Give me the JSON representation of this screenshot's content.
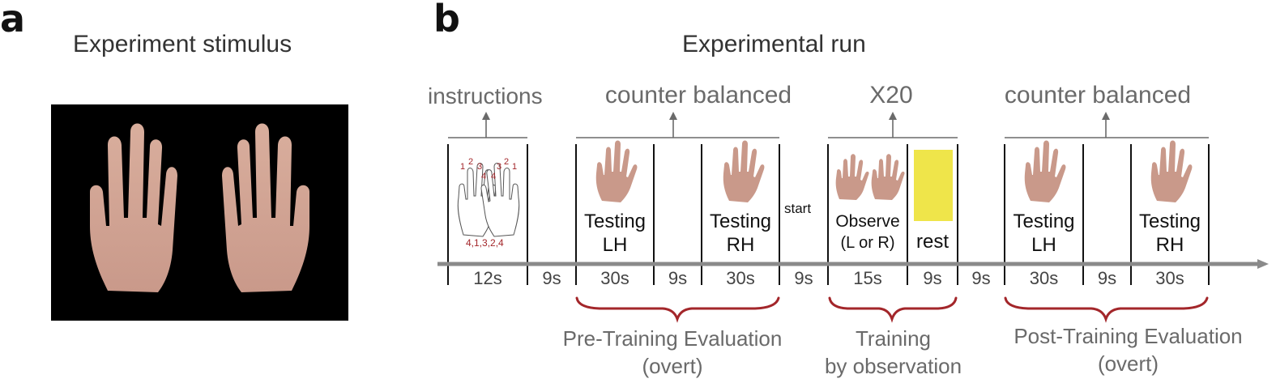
{
  "panel_a": {
    "letter": "a",
    "title": "Experiment stimulus"
  },
  "panel_b": {
    "letter": "b",
    "title": "Experimental run",
    "headers": {
      "instructions": "instructions",
      "counter_balanced_pre": "counter balanced",
      "repeat": "X20",
      "counter_balanced_post": "counter balanced"
    },
    "instructions_image": {
      "finger_numbers_left": [
        "1",
        "2",
        "3",
        "4"
      ],
      "finger_numbers_right": [
        "4",
        "3",
        "2",
        "1"
      ],
      "sequence": "4,1,3,2,4"
    },
    "cells": {
      "pre_left": [
        "Testing",
        "LH"
      ],
      "pre_right": [
        "Testing",
        "RH"
      ],
      "start": "start",
      "observe": [
        "Observe",
        "(L or R)"
      ],
      "rest": "rest",
      "post_left": [
        "Testing",
        "LH"
      ],
      "post_right": [
        "Testing",
        "RH"
      ]
    },
    "durations": [
      "12s",
      "9s",
      "30s",
      "9s",
      "30s",
      "9s",
      "15s",
      "9s",
      "9s",
      "30s",
      "9s",
      "30s"
    ],
    "phases": {
      "pre": [
        "Pre-Training Evaluation",
        "(overt)"
      ],
      "training": [
        "Training",
        "by observation"
      ],
      "post": [
        "Post-Training Evaluation",
        "(overt)"
      ]
    },
    "colors": {
      "rest_block": "#efe54a",
      "brace": "#a3262a",
      "timeline": "#8a8a8a",
      "stimulus_background": "#000000"
    }
  }
}
